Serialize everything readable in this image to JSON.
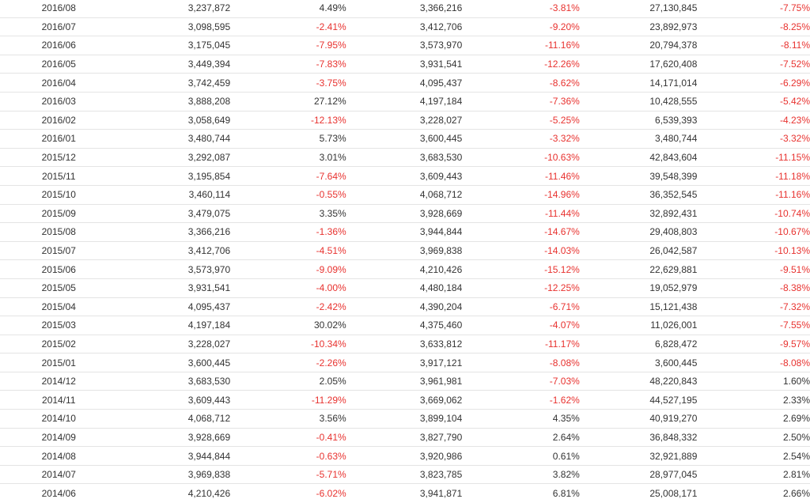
{
  "colors": {
    "text": "#333333",
    "negative": "#e8322f",
    "border": "#e4e4e4"
  },
  "rows": [
    {
      "date": "2016/08",
      "v1": "3,237,872",
      "p1": "4.49%",
      "v2": "3,366,216",
      "p2": "-3.81%",
      "v3": "27,130,845",
      "p3": "-7.75%"
    },
    {
      "date": "2016/07",
      "v1": "3,098,595",
      "p1": "-2.41%",
      "v2": "3,412,706",
      "p2": "-9.20%",
      "v3": "23,892,973",
      "p3": "-8.25%"
    },
    {
      "date": "2016/06",
      "v1": "3,175,045",
      "p1": "-7.95%",
      "v2": "3,573,970",
      "p2": "-11.16%",
      "v3": "20,794,378",
      "p3": "-8.11%"
    },
    {
      "date": "2016/05",
      "v1": "3,449,394",
      "p1": "-7.83%",
      "v2": "3,931,541",
      "p2": "-12.26%",
      "v3": "17,620,408",
      "p3": "-7.52%"
    },
    {
      "date": "2016/04",
      "v1": "3,742,459",
      "p1": "-3.75%",
      "v2": "4,095,437",
      "p2": "-8.62%",
      "v3": "14,171,014",
      "p3": "-6.29%"
    },
    {
      "date": "2016/03",
      "v1": "3,888,208",
      "p1": "27.12%",
      "v2": "4,197,184",
      "p2": "-7.36%",
      "v3": "10,428,555",
      "p3": "-5.42%"
    },
    {
      "date": "2016/02",
      "v1": "3,058,649",
      "p1": "-12.13%",
      "v2": "3,228,027",
      "p2": "-5.25%",
      "v3": "6,539,393",
      "p3": "-4.23%"
    },
    {
      "date": "2016/01",
      "v1": "3,480,744",
      "p1": "5.73%",
      "v2": "3,600,445",
      "p2": "-3.32%",
      "v3": "3,480,744",
      "p3": "-3.32%"
    },
    {
      "date": "2015/12",
      "v1": "3,292,087",
      "p1": "3.01%",
      "v2": "3,683,530",
      "p2": "-10.63%",
      "v3": "42,843,604",
      "p3": "-11.15%"
    },
    {
      "date": "2015/11",
      "v1": "3,195,854",
      "p1": "-7.64%",
      "v2": "3,609,443",
      "p2": "-11.46%",
      "v3": "39,548,399",
      "p3": "-11.18%"
    },
    {
      "date": "2015/10",
      "v1": "3,460,114",
      "p1": "-0.55%",
      "v2": "4,068,712",
      "p2": "-14.96%",
      "v3": "36,352,545",
      "p3": "-11.16%"
    },
    {
      "date": "2015/09",
      "v1": "3,479,075",
      "p1": "3.35%",
      "v2": "3,928,669",
      "p2": "-11.44%",
      "v3": "32,892,431",
      "p3": "-10.74%"
    },
    {
      "date": "2015/08",
      "v1": "3,366,216",
      "p1": "-1.36%",
      "v2": "3,944,844",
      "p2": "-14.67%",
      "v3": "29,408,803",
      "p3": "-10.67%"
    },
    {
      "date": "2015/07",
      "v1": "3,412,706",
      "p1": "-4.51%",
      "v2": "3,969,838",
      "p2": "-14.03%",
      "v3": "26,042,587",
      "p3": "-10.13%"
    },
    {
      "date": "2015/06",
      "v1": "3,573,970",
      "p1": "-9.09%",
      "v2": "4,210,426",
      "p2": "-15.12%",
      "v3": "22,629,881",
      "p3": "-9.51%"
    },
    {
      "date": "2015/05",
      "v1": "3,931,541",
      "p1": "-4.00%",
      "v2": "4,480,184",
      "p2": "-12.25%",
      "v3": "19,052,979",
      "p3": "-8.38%"
    },
    {
      "date": "2015/04",
      "v1": "4,095,437",
      "p1": "-2.42%",
      "v2": "4,390,204",
      "p2": "-6.71%",
      "v3": "15,121,438",
      "p3": "-7.32%"
    },
    {
      "date": "2015/03",
      "v1": "4,197,184",
      "p1": "30.02%",
      "v2": "4,375,460",
      "p2": "-4.07%",
      "v3": "11,026,001",
      "p3": "-7.55%"
    },
    {
      "date": "2015/02",
      "v1": "3,228,027",
      "p1": "-10.34%",
      "v2": "3,633,812",
      "p2": "-11.17%",
      "v3": "6,828,472",
      "p3": "-9.57%"
    },
    {
      "date": "2015/01",
      "v1": "3,600,445",
      "p1": "-2.26%",
      "v2": "3,917,121",
      "p2": "-8.08%",
      "v3": "3,600,445",
      "p3": "-8.08%"
    },
    {
      "date": "2014/12",
      "v1": "3,683,530",
      "p1": "2.05%",
      "v2": "3,961,981",
      "p2": "-7.03%",
      "v3": "48,220,843",
      "p3": "1.60%"
    },
    {
      "date": "2014/11",
      "v1": "3,609,443",
      "p1": "-11.29%",
      "v2": "3,669,062",
      "p2": "-1.62%",
      "v3": "44,527,195",
      "p3": "2.33%"
    },
    {
      "date": "2014/10",
      "v1": "4,068,712",
      "p1": "3.56%",
      "v2": "3,899,104",
      "p2": "4.35%",
      "v3": "40,919,270",
      "p3": "2.69%"
    },
    {
      "date": "2014/09",
      "v1": "3,928,669",
      "p1": "-0.41%",
      "v2": "3,827,790",
      "p2": "2.64%",
      "v3": "36,848,332",
      "p3": "2.50%"
    },
    {
      "date": "2014/08",
      "v1": "3,944,844",
      "p1": "-0.63%",
      "v2": "3,920,986",
      "p2": "0.61%",
      "v3": "32,921,889",
      "p3": "2.54%"
    },
    {
      "date": "2014/07",
      "v1": "3,969,838",
      "p1": "-5.71%",
      "v2": "3,823,785",
      "p2": "3.82%",
      "v3": "28,977,045",
      "p3": "2.81%"
    },
    {
      "date": "2014/06",
      "v1": "4,210,426",
      "p1": "-6.02%",
      "v2": "3,941,871",
      "p2": "6.81%",
      "v3": "25,008,171",
      "p3": "2.66%"
    }
  ]
}
